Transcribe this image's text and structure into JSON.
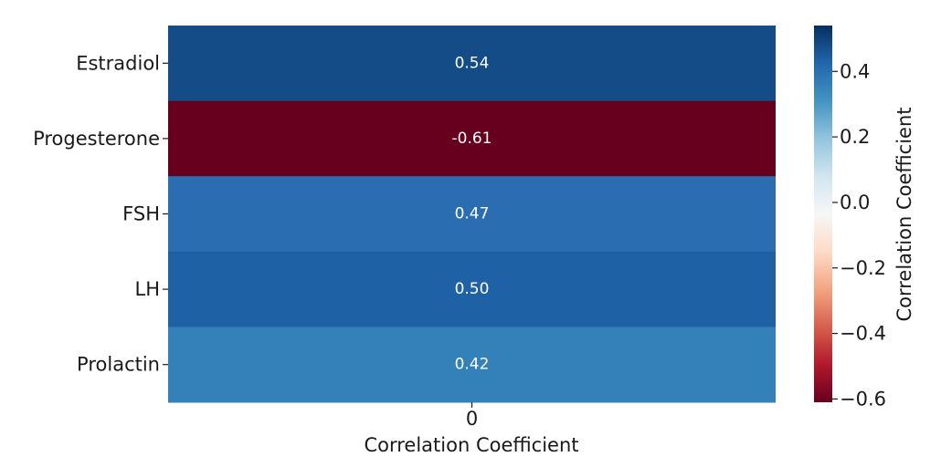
{
  "chart_data": {
    "type": "heatmap",
    "title": "",
    "xlabel": "Correlation Coefficient",
    "ylabel": "",
    "x_categories": [
      "0"
    ],
    "y_categories": [
      "Estradiol",
      "Progesterone",
      "FSH",
      "LH",
      "Prolactin"
    ],
    "values": [
      0.54,
      -0.61,
      0.47,
      0.5,
      0.42
    ],
    "value_labels": [
      "0.54",
      "-0.61",
      "0.47",
      "0.50",
      "0.42"
    ],
    "colormap": "RdBu",
    "vmin": -0.61,
    "vmax": 0.54,
    "colorbar": {
      "label": "Correlation Coefficient",
      "ticks": [
        0.4,
        0.2,
        0.0,
        -0.2,
        -0.4,
        -0.6
      ],
      "tick_labels": [
        "0.4",
        "0.2",
        "0.0",
        "−0.2",
        "−0.4",
        "−0.6"
      ]
    },
    "cell_colors": [
      "#134c87",
      "#67001f",
      "#2a6eb1",
      "#1e61a5",
      "#3480b9"
    ],
    "colormap_stops": [
      "#67001f",
      "#b2182b",
      "#d6604d",
      "#f4a582",
      "#fddbc7",
      "#f7f7f7",
      "#d1e5f0",
      "#92c5de",
      "#4393c3",
      "#2166ac",
      "#053061"
    ]
  }
}
